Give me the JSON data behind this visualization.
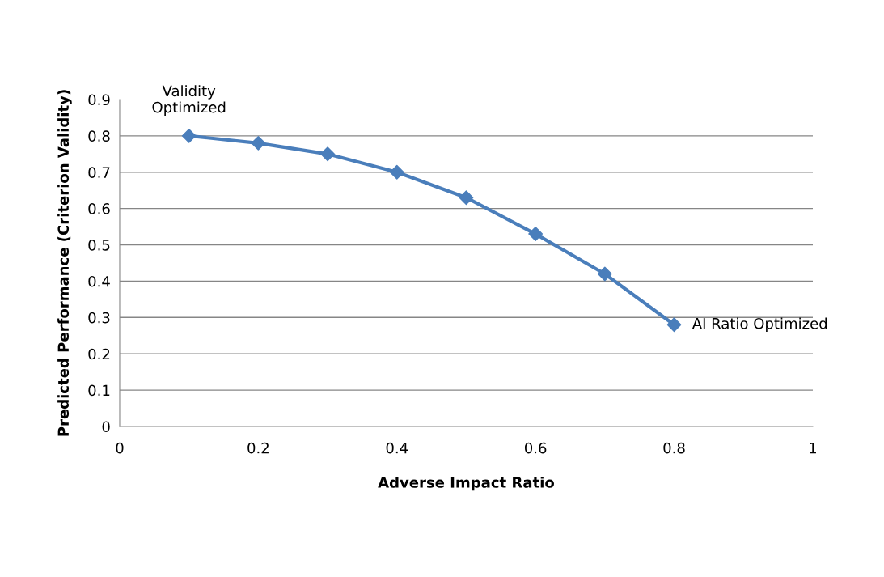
{
  "chart_data": {
    "type": "line",
    "xlabel": "Adverse Impact Ratio",
    "ylabel": "Predicted Performance (Criterion Validity)",
    "x": [
      0.1,
      0.2,
      0.3,
      0.4,
      0.5,
      0.6,
      0.7,
      0.8
    ],
    "series": [
      {
        "color": "#4a7ebb",
        "values": [
          0.8,
          0.78,
          0.75,
          0.7,
          0.63,
          0.53,
          0.42,
          0.28
        ]
      }
    ],
    "xlim": [
      0,
      1
    ],
    "xticks": [
      {
        "value": 0,
        "label": "0"
      },
      0.2,
      0.4,
      0.6,
      0.8,
      {
        "value": 1,
        "label": "1"
      }
    ],
    "ylim": [
      0,
      0.9
    ],
    "yticks": [
      {
        "value": 0,
        "label": "0"
      },
      0.1,
      0.2,
      0.3,
      0.4,
      0.5,
      0.6,
      0.7,
      0.8,
      0.9
    ],
    "grid": "y",
    "marker": "diamond",
    "line_style": "solid",
    "annotations": [
      {
        "text": "Validity\nOptimized",
        "x": 0.1,
        "y": 0.8
      },
      {
        "text": "AI Ratio Optimized",
        "x": 0.8,
        "y": 0.28
      }
    ]
  }
}
